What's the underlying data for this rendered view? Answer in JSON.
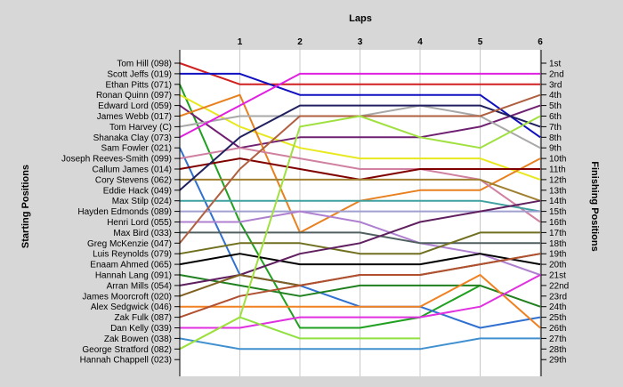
{
  "chart_data": {
    "type": "line",
    "title": "Laps",
    "xlabel_left": "Starting Positions",
    "ylabel_right": "Finishing Positions",
    "x": [
      0,
      1,
      2,
      3,
      4,
      5,
      6
    ],
    "lap_labels": [
      "1",
      "2",
      "3",
      "4",
      "5",
      "6"
    ],
    "drivers": [
      "Tom Hill (098)",
      "Scott Jeffs (019)",
      "Ethan Pitts (071)",
      "Ronan Quinn (097)",
      "Edward Lord (059)",
      "James Webb (017)",
      "Tom Harvey (C)",
      "Shanaka Clay (073)",
      "Sam Fowler (021)",
      "Joseph Reeves-Smith (099)",
      "Callum James (014)",
      "Cory Stevens (062)",
      "Eddie Hack (049)",
      "Max Stilp (024)",
      "Hayden Edmonds (089)",
      "Henri Lord (055)",
      "Max Bird (033)",
      "Greg McKenzie (047)",
      "Luis Reynolds (079)",
      "Enaam Ahmed (065)",
      "Hannah Lang (091)",
      "Arran Mills (054)",
      "James Moorcroft (020)",
      "Alex Sedgwick (046)",
      "Zak Fulk (087)",
      "Dan Kelly (039)",
      "Zak Bowen (038)",
      "George Stratford (082)",
      "Hannah Chappell (023)"
    ],
    "finishing_positions": [
      "1st",
      "2nd",
      "3rd",
      "4th",
      "5th",
      "6th",
      "7th",
      "8th",
      "9th",
      "10th",
      "11th",
      "12th",
      "13th",
      "14th",
      "15th",
      "16th",
      "17th",
      "18th",
      "19th",
      "20th",
      "21st",
      "22nd",
      "23rd",
      "24th",
      "25th",
      "26th",
      "27th",
      "28th",
      "29th"
    ],
    "ylim": [
      1,
      29
    ],
    "series": [
      {
        "color": "#d02020",
        "positions": [
          1,
          3,
          3,
          3,
          3,
          3,
          3
        ]
      },
      {
        "color": "#1010c0",
        "positions": [
          2,
          2,
          4,
          4,
          4,
          4,
          8
        ]
      },
      {
        "color": "#20a020",
        "positions": [
          3,
          16,
          26,
          26,
          25,
          22,
          null
        ]
      },
      {
        "color": "#e8e820",
        "positions": [
          4,
          7,
          9,
          10,
          10,
          10,
          12
        ]
      },
      {
        "color": "#702070",
        "positions": [
          5,
          9,
          8,
          8,
          8,
          7,
          5
        ]
      },
      {
        "color": "#e88020",
        "positions": [
          6,
          4,
          17,
          14,
          13,
          13,
          10
        ]
      },
      {
        "color": "#a8a8a8",
        "positions": [
          7,
          6,
          6,
          6,
          5,
          6,
          9
        ]
      },
      {
        "color": "#e020e0",
        "positions": [
          8,
          5,
          2,
          2,
          2,
          2,
          2
        ]
      },
      {
        "color": "#3070d0",
        "positions": [
          9,
          21,
          22,
          24,
          24,
          26,
          25
        ]
      },
      {
        "color": "#d080a0",
        "positions": [
          10,
          9,
          10,
          11,
          11,
          12,
          16
        ]
      },
      {
        "color": "#800000",
        "positions": [
          11,
          10,
          11,
          12,
          11,
          11,
          11
        ]
      },
      {
        "color": "#a08030",
        "positions": [
          12,
          12,
          12,
          12,
          12,
          12,
          14
        ]
      },
      {
        "color": "#202060",
        "positions": [
          13,
          8,
          5,
          5,
          5,
          5,
          7
        ]
      },
      {
        "color": "#40a0a0",
        "positions": [
          14,
          14,
          14,
          14,
          14,
          14,
          15
        ]
      },
      {
        "color": "#a0a0d0",
        "positions": [
          15,
          15,
          15,
          15,
          15,
          15,
          15
        ]
      },
      {
        "color": "#b080d0",
        "positions": [
          16,
          16,
          15,
          16,
          18,
          19,
          21
        ]
      },
      {
        "color": "#506060",
        "positions": [
          17,
          17,
          17,
          17,
          18,
          18,
          18
        ]
      },
      {
        "color": "#b06040",
        "positions": [
          18,
          11,
          6,
          6,
          6,
          6,
          4
        ]
      },
      {
        "color": "#707020",
        "positions": [
          19,
          18,
          18,
          19,
          19,
          17,
          17
        ]
      },
      {
        "color": "#000000",
        "positions": [
          20,
          19,
          20,
          20,
          20,
          19,
          20
        ]
      },
      {
        "color": "#208020",
        "positions": [
          21,
          22,
          23,
          22,
          22,
          22,
          24
        ]
      },
      {
        "color": "#602060",
        "positions": [
          22,
          21,
          19,
          18,
          16,
          15,
          14
        ]
      },
      {
        "color": "#806020",
        "positions": [
          23,
          21,
          22,
          21,
          21,
          20,
          19
        ]
      },
      {
        "color": "#f08020",
        "positions": [
          24,
          24,
          24,
          24,
          24,
          21,
          26
        ]
      },
      {
        "color": "#b05030",
        "positions": [
          25,
          23,
          22,
          21,
          21,
          20,
          19
        ]
      },
      {
        "color": "#e030e0",
        "positions": [
          26,
          26,
          25,
          25,
          25,
          24,
          21
        ]
      },
      {
        "color": "#90e040",
        "positions": [
          28,
          25,
          27,
          27,
          27,
          null,
          null
        ]
      },
      {
        "color": "#4090d0",
        "positions": [
          27,
          28,
          28,
          28,
          28,
          27,
          27
        ]
      },
      {
        "color": "#a0e040",
        "positions": [
          28,
          25,
          7,
          6,
          8,
          9,
          6
        ]
      }
    ]
  }
}
